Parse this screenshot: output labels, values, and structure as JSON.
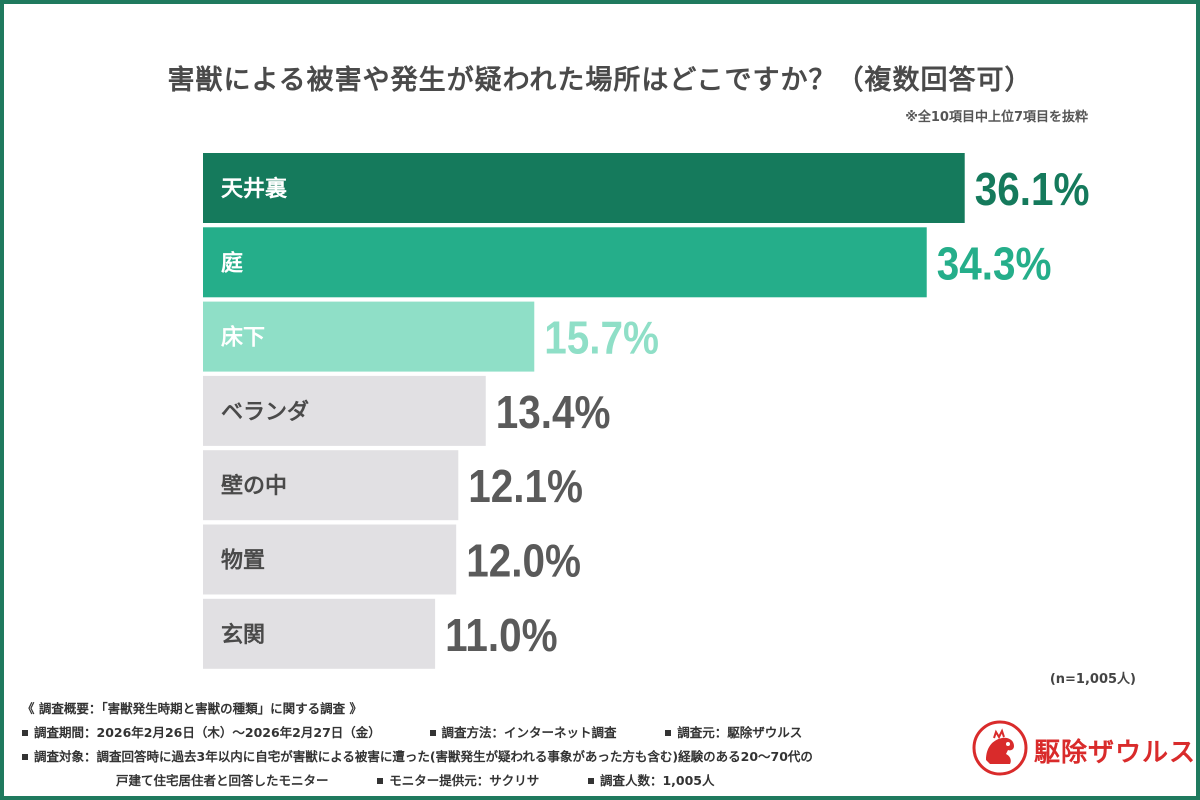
{
  "title": "害獣による被害や発生が疑われた場所はどこですか？（複数回答可）",
  "subnote": "※全10項目中上位7項目を抜粋",
  "sample_note": "(n=1,005人)",
  "footer": {
    "heading": "《 調査概要：「害獣発生時期と害獣の種類」に関する調査 》",
    "period": "調査期間：2026年2月26日（木）～2026年2月27日（金）",
    "method": "調査方法：インターネット調査",
    "source": "調査元：駆除ザウルス",
    "target_line1": "調査対象：調査回答時に過去3年以内に自宅が害獣による被害に遭った(害獣発生が疑われる事象があった方も含む)経験のある20～70代の",
    "target_line2": "戸建て住宅居住者と回答したモニター",
    "provider": "モニター提供元：サクリサ",
    "respondents": "調査人数：1,005人"
  },
  "logo": {
    "text": "駆除ザウルス",
    "color": "#d92b2b"
  },
  "chart_data": {
    "type": "bar",
    "orientation": "horizontal",
    "categories": [
      "天井裏",
      "庭",
      "床下",
      "ベランダ",
      "壁の中",
      "物置",
      "玄関"
    ],
    "values": [
      36.1,
      34.3,
      15.7,
      13.4,
      12.1,
      12.0,
      11.0
    ],
    "value_labels": [
      "36.1%",
      "34.3%",
      "15.7%",
      "13.4%",
      "12.1%",
      "12.0%",
      "11.0%"
    ],
    "bar_colors": [
      "#157a5c",
      "#25ae8a",
      "#8fdfc7",
      "#e1e0e3",
      "#e1e0e3",
      "#e1e0e3",
      "#e1e0e3"
    ],
    "label_colors": [
      "#ffffff",
      "#ffffff",
      "#ffffff",
      "#4a4a4a",
      "#4a4a4a",
      "#4a4a4a",
      "#4a4a4a"
    ],
    "value_colors": [
      "#157a5c",
      "#25ae8a",
      "#8fdfc7",
      "#5a5a5a",
      "#5a5a5a",
      "#5a5a5a",
      "#5a5a5a"
    ],
    "unit": "%"
  }
}
